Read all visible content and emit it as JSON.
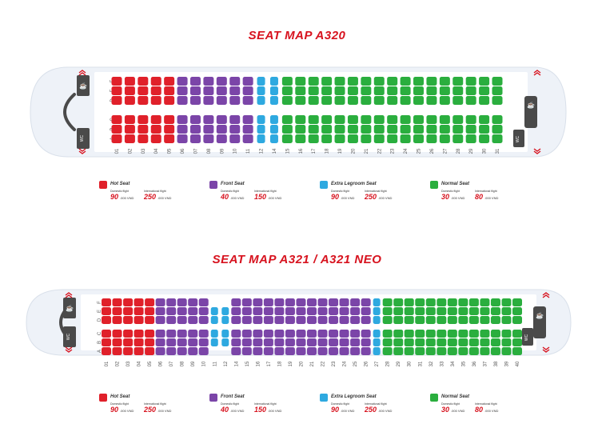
{
  "colors": {
    "hot": "#e0202a",
    "front": "#7b45a8",
    "legroom": "#2ea9e0",
    "normal": "#2aae3e",
    "title": "#d7121e",
    "fuselage": "#eef2f8",
    "cabin": "#ffffff",
    "dark": "#4a4a4a"
  },
  "icons": {
    "exit": "exit-arrow-icon",
    "lavatory": "lavatory-icon",
    "galley": "galley-icon"
  },
  "legend": [
    {
      "key": "hot",
      "name": "Hot Seat",
      "domestic_label": "Domestic flight",
      "domestic_price": "90",
      "international_label": "International flight",
      "international_price": "250",
      "unit": ".000 VND"
    },
    {
      "key": "front",
      "name": "Front Seat",
      "domestic_label": "Domestic flight",
      "domestic_price": "40",
      "international_label": "International flight",
      "international_price": "150",
      "unit": ".000 VND"
    },
    {
      "key": "legroom",
      "name": "Extra Legroom Seat",
      "domestic_label": "Domestic flight",
      "domestic_price": "90",
      "international_label": "International flight",
      "international_price": "250",
      "unit": ".000 VND"
    },
    {
      "key": "normal",
      "name": "Normal Seat",
      "domestic_label": "Domestic flight",
      "domestic_price": "30",
      "international_label": "International flight",
      "international_price": "80",
      "unit": ".000 VND"
    }
  ],
  "maps": [
    {
      "title": "SEAT MAP A320",
      "upper_letters": [
        "D",
        "E",
        "F"
      ],
      "lower_letters": [
        "A",
        "B",
        "C"
      ],
      "wc_label": "WC",
      "rows": [
        {
          "n": "01",
          "cls": "hot"
        },
        {
          "n": "02",
          "cls": "hot"
        },
        {
          "n": "03",
          "cls": "hot"
        },
        {
          "n": "04",
          "cls": "hot"
        },
        {
          "n": "05",
          "cls": "hot"
        },
        {
          "n": "06",
          "cls": "front"
        },
        {
          "n": "07",
          "cls": "front"
        },
        {
          "n": "08",
          "cls": "front"
        },
        {
          "n": "09",
          "cls": "front"
        },
        {
          "n": "10",
          "cls": "front"
        },
        {
          "n": "11",
          "cls": "front"
        },
        {
          "n": "12",
          "cls": "legroom"
        },
        {
          "n": "14",
          "cls": "legroom"
        },
        {
          "n": "15",
          "cls": "normal"
        },
        {
          "n": "16",
          "cls": "normal"
        },
        {
          "n": "17",
          "cls": "normal"
        },
        {
          "n": "18",
          "cls": "normal"
        },
        {
          "n": "19",
          "cls": "normal"
        },
        {
          "n": "20",
          "cls": "normal"
        },
        {
          "n": "21",
          "cls": "normal"
        },
        {
          "n": "22",
          "cls": "normal"
        },
        {
          "n": "23",
          "cls": "normal"
        },
        {
          "n": "24",
          "cls": "normal"
        },
        {
          "n": "25",
          "cls": "normal"
        },
        {
          "n": "26",
          "cls": "normal"
        },
        {
          "n": "27",
          "cls": "normal"
        },
        {
          "n": "28",
          "cls": "normal"
        },
        {
          "n": "29",
          "cls": "normal"
        },
        {
          "n": "30",
          "cls": "normal"
        },
        {
          "n": "31",
          "cls": "normal"
        }
      ]
    },
    {
      "title": "SEAT MAP A321 / A321 NEO",
      "upper_letters": [
        "D",
        "E",
        "F"
      ],
      "lower_letters": [
        "A",
        "B",
        "C"
      ],
      "wc_label": "WC",
      "rows": [
        {
          "n": "01",
          "cls": "hot"
        },
        {
          "n": "02",
          "cls": "hot"
        },
        {
          "n": "03",
          "cls": "hot"
        },
        {
          "n": "04",
          "cls": "hot"
        },
        {
          "n": "05",
          "cls": "hot"
        },
        {
          "n": "06",
          "cls": "front"
        },
        {
          "n": "07",
          "cls": "front"
        },
        {
          "n": "08",
          "cls": "front"
        },
        {
          "n": "09",
          "cls": "front"
        },
        {
          "n": "10",
          "cls": "front"
        },
        {
          "n": "11",
          "cls": "legroom"
        },
        {
          "n": "12",
          "cls": "legroom"
        },
        {
          "n": "14",
          "cls": "front"
        },
        {
          "n": "15",
          "cls": "front"
        },
        {
          "n": "16",
          "cls": "front"
        },
        {
          "n": "17",
          "cls": "front"
        },
        {
          "n": "18",
          "cls": "front"
        },
        {
          "n": "19",
          "cls": "front"
        },
        {
          "n": "20",
          "cls": "front"
        },
        {
          "n": "21",
          "cls": "front"
        },
        {
          "n": "22",
          "cls": "front"
        },
        {
          "n": "23",
          "cls": "front"
        },
        {
          "n": "24",
          "cls": "front"
        },
        {
          "n": "25",
          "cls": "front"
        },
        {
          "n": "26",
          "cls": "front"
        },
        {
          "n": "27",
          "cls": "legroom"
        },
        {
          "n": "28",
          "cls": "normal"
        },
        {
          "n": "29",
          "cls": "normal"
        },
        {
          "n": "30",
          "cls": "normal"
        },
        {
          "n": "31",
          "cls": "normal"
        },
        {
          "n": "32",
          "cls": "normal"
        },
        {
          "n": "33",
          "cls": "normal"
        },
        {
          "n": "34",
          "cls": "normal"
        },
        {
          "n": "35",
          "cls": "normal"
        },
        {
          "n": "36",
          "cls": "normal"
        },
        {
          "n": "37",
          "cls": "normal"
        },
        {
          "n": "38",
          "cls": "normal"
        },
        {
          "n": "39",
          "cls": "normal"
        },
        {
          "n": "40",
          "cls": "normal"
        }
      ]
    }
  ]
}
